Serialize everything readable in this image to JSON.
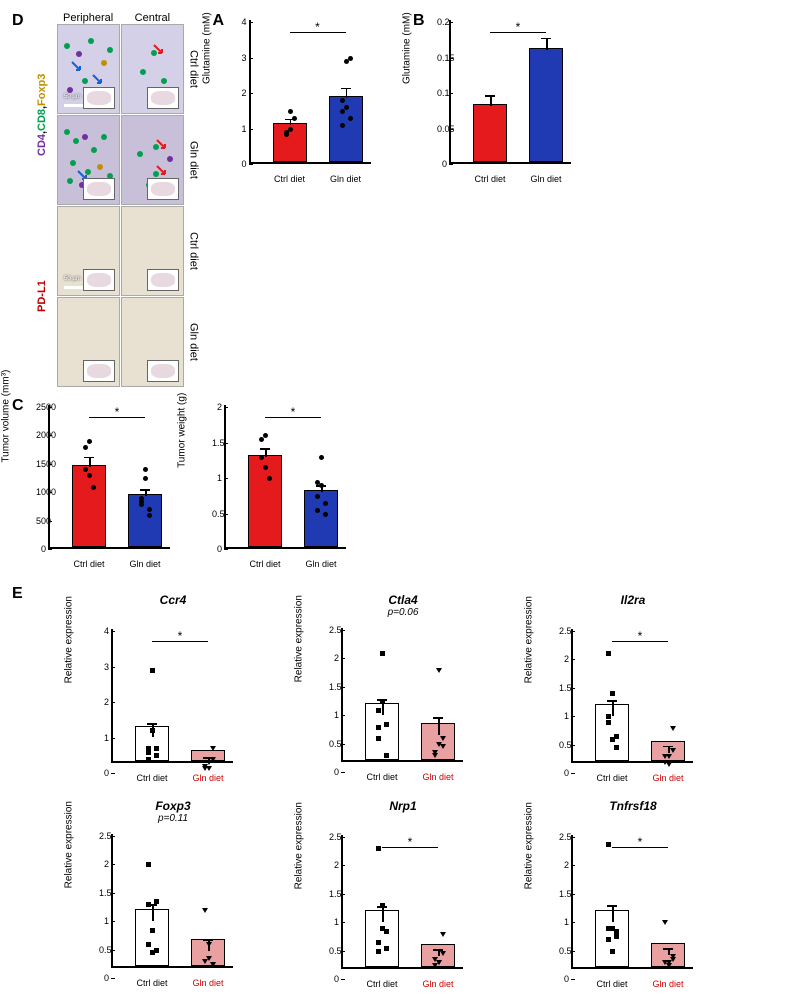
{
  "panelA": {
    "label": "A",
    "type": "bar",
    "ylabel": "Glutamine (mM)",
    "ylim": [
      0,
      4
    ],
    "ytick_step": 1,
    "categories": [
      "Ctrl diet",
      "Gln diet"
    ],
    "values": [
      1.1,
      1.85
    ],
    "err": [
      0.18,
      0.3
    ],
    "bar_colors": [
      "#e41a1c",
      "#1f3ab2"
    ],
    "points_ctrl": [
      0.9,
      1.0,
      1.3,
      0.85,
      1.5
    ],
    "points_gln": [
      1.5,
      2.9,
      3.0,
      1.1,
      1.6,
      1.3,
      1.8
    ],
    "significance": "*",
    "background_color": "#ffffff"
  },
  "panelB": {
    "label": "B",
    "type": "bar",
    "ylabel": "Glutamine (mM)",
    "ylim": [
      0,
      0.2
    ],
    "ytick_step": 0.05,
    "categories": [
      "Ctrl diet",
      "Gln diet"
    ],
    "values": [
      0.082,
      0.16
    ],
    "err": [
      0.015,
      0.018
    ],
    "bar_colors": [
      "#e41a1c",
      "#1f3ab2"
    ],
    "significance": "*",
    "background_color": "#ffffff"
  },
  "panelC": {
    "label": "C",
    "charts": [
      {
        "type": "bar",
        "ylabel": "Tumor volume (mm³)",
        "ylim": [
          0,
          2500
        ],
        "ytick_step": 500,
        "categories": [
          "Ctrl diet",
          "Gln diet"
        ],
        "values": [
          1450,
          930
        ],
        "err": [
          170,
          120
        ],
        "bar_colors": [
          "#e41a1c",
          "#1f3ab2"
        ],
        "points_ctrl": [
          1400,
          1900,
          1100,
          1800,
          1300
        ],
        "points_gln": [
          900,
          1400,
          700,
          800,
          1250,
          600,
          850
        ],
        "significance": "*"
      },
      {
        "type": "bar",
        "ylabel": "Tumor weight (g)",
        "ylim": [
          0,
          2.0
        ],
        "ytick_step": 0.5,
        "categories": [
          "Ctrl diet",
          "Gln diet"
        ],
        "values": [
          1.3,
          0.8
        ],
        "err": [
          0.12,
          0.1
        ],
        "bar_colors": [
          "#e41a1c",
          "#1f3ab2"
        ],
        "points_ctrl": [
          1.3,
          1.6,
          1.0,
          1.55,
          1.15
        ],
        "points_gln": [
          0.95,
          1.3,
          0.65,
          0.55,
          0.9,
          0.5,
          0.75
        ],
        "significance": "*"
      }
    ]
  },
  "panelD": {
    "label": "D",
    "columns": [
      "Peripheral",
      "Central"
    ],
    "rows_top": [
      "Ctrl diet",
      "Gln diet",
      "Ctrl diet",
      "Gln diet"
    ],
    "left_label_top": {
      "parts": [
        {
          "text": "CD4",
          "color": "#7030a0"
        },
        {
          "text": ", ",
          "color": "#000"
        },
        {
          "text": "CD8",
          "color": "#00a050"
        },
        {
          "text": ", ",
          "color": "#000"
        },
        {
          "text": "Foxp3",
          "color": "#c09000"
        }
      ]
    },
    "left_label_bottom": {
      "text": "PD-L1",
      "color": "#c00000"
    },
    "scalebar": "50 µm",
    "arrow_colors": {
      "blue": "#1560d6",
      "red": "#e41a1c"
    },
    "cell_colors": {
      "cd4": "#7030a0",
      "cd8": "#00a050",
      "foxp3": "#c09000"
    },
    "tissue_bg_top": "#d4d0e8",
    "tissue_bg_pdl1": "#e8e0d0"
  },
  "panelE": {
    "label": "E",
    "ylabel": "Relative expression",
    "categories": [
      "Ctrl diet",
      "Gln diet"
    ],
    "bar_colors": [
      "#ffffff",
      "#e8a0a0"
    ],
    "bar_border": "#000000",
    "gln_label_color": "#c00000",
    "genes": [
      {
        "name": "Ccr4",
        "ylim": [
          0,
          4
        ],
        "yticks": [
          0,
          1,
          2,
          3,
          4
        ],
        "means": [
          1.0,
          0.3
        ],
        "err": [
          0.4,
          0.15
        ],
        "ctrl_points": [
          0.7,
          2.9,
          0.5,
          0.6,
          1.2,
          0.7,
          0.4
        ],
        "gln_points": [
          0.2,
          0.15,
          0.7,
          0.15,
          0.3,
          0.4
        ],
        "sig": "*",
        "pvalue": null
      },
      {
        "name": "Ctla4",
        "ylim": [
          0,
          2.5
        ],
        "yticks": [
          0,
          0.5,
          1.0,
          1.5,
          2.0
        ],
        "means": [
          1.0,
          0.66
        ],
        "err": [
          0.28,
          0.3
        ],
        "ctrl_points": [
          0.6,
          2.1,
          0.3,
          1.1,
          1.25,
          0.85,
          0.8
        ],
        "gln_points": [
          0.3,
          1.8,
          0.45,
          0.35,
          0.5,
          0.6
        ],
        "sig": null,
        "pvalue": "p=0.06"
      },
      {
        "name": "Il2ra",
        "ylim": [
          0,
          2.5
        ],
        "yticks": [
          0,
          0.5,
          1.0,
          1.5,
          2.0
        ],
        "means": [
          1.0,
          0.36
        ],
        "err": [
          0.28,
          0.12
        ],
        "ctrl_points": [
          2.12,
          0.6,
          0.45,
          0.9,
          1.4,
          0.65,
          1.0
        ],
        "gln_points": [
          0.2,
          0.15,
          0.8,
          0.3,
          0.3,
          0.4
        ],
        "sig": "*",
        "pvalue": null
      },
      {
        "name": "Foxp3",
        "ylim": [
          0,
          2.5
        ],
        "yticks": [
          0,
          0.5,
          1.0,
          1.5,
          2.0
        ],
        "means": [
          1.0,
          0.48
        ],
        "err": [
          0.3,
          0.2
        ],
        "ctrl_points": [
          2.0,
          0.85,
          1.35,
          1.3,
          0.45,
          0.5,
          0.6
        ],
        "gln_points": [
          1.2,
          0.35,
          0.25,
          0.3,
          0.6,
          0.25
        ],
        "sig": null,
        "pvalue": "p=0.11"
      },
      {
        "name": "Nrp1",
        "ylim": [
          0,
          2.5
        ],
        "yticks": [
          0,
          0.5,
          1.0,
          1.5,
          2.0
        ],
        "means": [
          1.0,
          0.4
        ],
        "err": [
          0.28,
          0.12
        ],
        "ctrl_points": [
          2.3,
          0.9,
          0.55,
          0.65,
          1.3,
          0.85,
          0.5
        ],
        "gln_points": [
          0.25,
          0.3,
          0.8,
          0.35,
          0.3,
          0.45
        ],
        "sig": "*",
        "pvalue": null
      },
      {
        "name": "Tnfrsf18",
        "ylim": [
          0,
          2.5
        ],
        "yticks": [
          0,
          0.5,
          1.0,
          1.5,
          2.0
        ],
        "means": [
          1.0,
          0.42
        ],
        "err": [
          0.3,
          0.12
        ],
        "ctrl_points": [
          2.38,
          0.5,
          0.75,
          0.9,
          0.9,
          0.85,
          0.7
        ],
        "gln_points": [
          1.0,
          0.25,
          0.4,
          0.3,
          0.3,
          0.35
        ],
        "sig": "*",
        "pvalue": null
      }
    ]
  },
  "fonts": {
    "label_fontsize": 16,
    "axis_fontsize": 10,
    "tick_fontsize": 9,
    "gene_title_fontsize": 12
  }
}
